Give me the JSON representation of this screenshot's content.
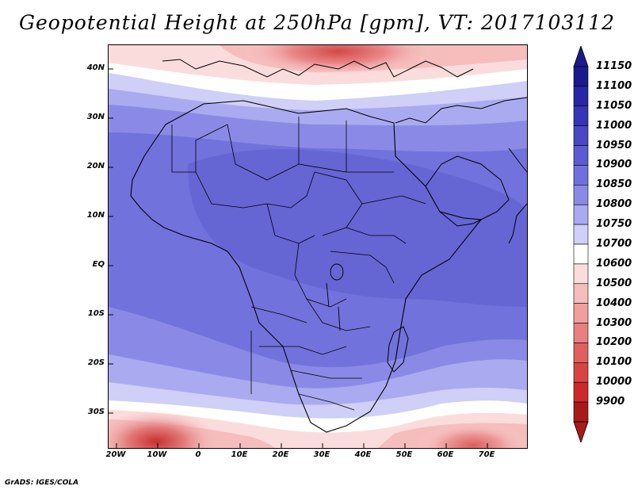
{
  "title": "Geopotential Height at 250hPa [gpm], VT: 2017103112",
  "credit": "GrADS: IGES/COLA",
  "lat_labels": [
    "40N",
    "30N",
    "20N",
    "10N",
    "EQ",
    "10S",
    "20S",
    "30S"
  ],
  "lon_labels": [
    "20W",
    "10W",
    "0",
    "10E",
    "20E",
    "30E",
    "40E",
    "50E",
    "60E",
    "70E"
  ],
  "colorbar": {
    "levels": [
      "11150",
      "11100",
      "11050",
      "11000",
      "10950",
      "10900",
      "10850",
      "10800",
      "10750",
      "10700",
      "10600",
      "10500",
      "10400",
      "10300",
      "10200",
      "10100",
      "10000",
      "9900"
    ],
    "colors": [
      "#1a1a8c",
      "#2626a6",
      "#3535b8",
      "#4848c4",
      "#5c5cd2",
      "#7070dc",
      "#8a8ae6",
      "#aaaaf0",
      "#cfcff7",
      "#ffffff",
      "#fbdcdc",
      "#f6bdbd",
      "#f09e9e",
      "#e88080",
      "#e06060",
      "#d84444",
      "#cc2a2a",
      "#a81a1a"
    ]
  },
  "map": {
    "extent": {
      "lon_min": -22,
      "lon_max": 80,
      "lat_min": -37,
      "lat_max": 45
    },
    "dominant_level": "10950"
  }
}
